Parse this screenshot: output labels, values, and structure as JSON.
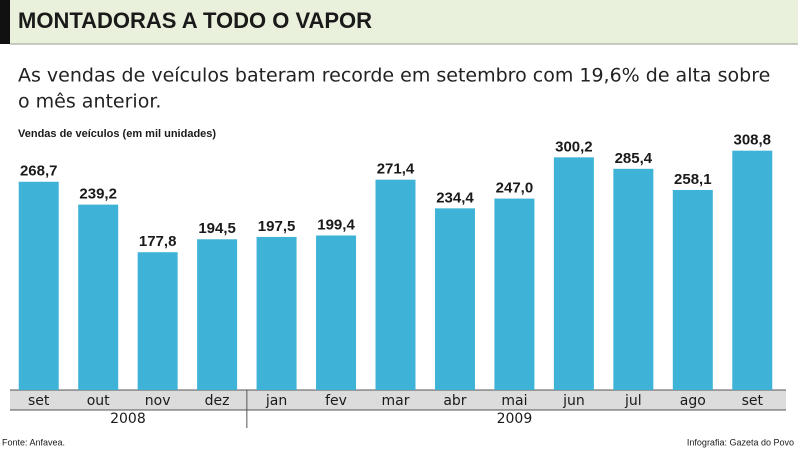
{
  "chart_data": {
    "type": "bar",
    "title": "MONTADORAS A TODO O VAPOR",
    "subtitle": [
      "As vendas de veículos bateram recorde em setembro com 19,6% de alta sobre",
      "o mês anterior."
    ],
    "y_label": "Vendas de veículos  (em mil unidades)",
    "categories": [
      "set",
      "out",
      "nov",
      "dez",
      "jan",
      "fev",
      "mar",
      "abr",
      "mai",
      "jun",
      "jul",
      "ago",
      "set"
    ],
    "values": [
      268.7,
      239.2,
      177.8,
      194.5,
      197.5,
      199.4,
      271.4,
      234.4,
      247.0,
      300.2,
      285.4,
      258.1,
      308.8
    ],
    "value_labels": [
      "268,7",
      "239,2",
      "177,8",
      "194,5",
      "197,5",
      "199,4",
      "271,4",
      "234,4",
      "247,0",
      "300,2",
      "285,4",
      "258,1",
      "308,8"
    ],
    "groups": [
      {
        "name": "2008",
        "count": 4
      },
      {
        "name": "2009",
        "count": 9
      }
    ],
    "color": "#3fb3d7",
    "ylim": [
      0,
      320
    ],
    "source": "Fonte: Anfavea.",
    "credit": "Infografia: Gazeta do Povo"
  }
}
